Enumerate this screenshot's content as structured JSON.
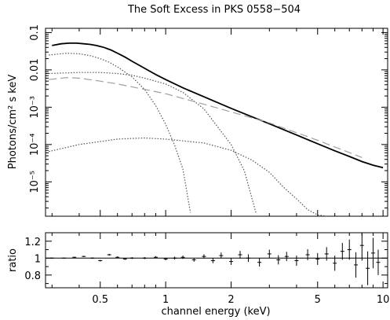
{
  "chart_data": [
    {
      "type": "line",
      "title": "The Soft Excess in PKS 0558−504",
      "xlabel": "",
      "ylabel": "Photons/cm² s keV",
      "xscale": "log",
      "yscale": "log",
      "xlim": [
        0.28,
        10.5
      ],
      "ylim": [
        1.2e-06,
        0.13
      ],
      "x_ticks": [
        0.5,
        1,
        2,
        5,
        10
      ],
      "y_ticks": [
        {
          "v": 0.1,
          "label": "0.1"
        },
        {
          "v": 0.01,
          "label": "0.01"
        },
        {
          "v": 0.001,
          "label": "10⁻³"
        },
        {
          "v": 0.0001,
          "label": "10⁻⁴"
        },
        {
          "v": 1e-05,
          "label": "10⁻⁵"
        }
      ],
      "series": [
        {
          "style": "data",
          "color": "#000000",
          "x": [
            0.3,
            0.33,
            0.36,
            0.39,
            0.42,
            0.45,
            0.48,
            0.52,
            0.56,
            0.6,
            0.65,
            0.7,
            0.8,
            0.9,
            1.0,
            1.2,
            1.5,
            2.0,
            2.5,
            3.0,
            4.0,
            5.0,
            6.0,
            7.0,
            8.0,
            9.0,
            10.0
          ],
          "y": [
            0.045,
            0.05,
            0.052,
            0.052,
            0.05,
            0.048,
            0.045,
            0.04,
            0.034,
            0.028,
            0.022,
            0.017,
            0.011,
            0.0075,
            0.0055,
            0.0033,
            0.0019,
            0.00093,
            0.00055,
            0.00036,
            0.00018,
            0.000105,
            6.8e-05,
            4.8e-05,
            3.5e-05,
            2.8e-05,
            2.4e-05
          ]
        },
        {
          "style": "blackbody-1",
          "color": "#555555",
          "x": [
            0.29,
            0.35,
            0.4,
            0.45,
            0.5,
            0.55,
            0.6,
            0.7,
            0.8,
            0.9,
            1.0,
            1.1,
            1.2,
            1.3
          ],
          "y": [
            0.025,
            0.028,
            0.027,
            0.024,
            0.02,
            0.016,
            0.012,
            0.0065,
            0.003,
            0.0011,
            0.00035,
            9.5e-05,
            2.2e-05,
            1.5e-06
          ]
        },
        {
          "style": "blackbody-2",
          "color": "#555555",
          "x": [
            0.29,
            0.4,
            0.5,
            0.6,
            0.7,
            0.8,
            1.0,
            1.2,
            1.5,
            2.0,
            2.3,
            2.6
          ],
          "y": [
            0.008,
            0.0085,
            0.0085,
            0.008,
            0.0072,
            0.006,
            0.0042,
            0.0025,
            0.0009,
            0.0001,
            2e-05,
            1.5e-06
          ]
        },
        {
          "style": "blackbody-3",
          "color": "#555555",
          "x": [
            0.29,
            0.4,
            0.6,
            0.8,
            1.0,
            1.5,
            2.0,
            2.5,
            3.0,
            3.5,
            4.0,
            4.5,
            5.0,
            5.5
          ],
          "y": [
            6.5e-05,
            0.0001,
            0.00014,
            0.00015,
            0.00014,
            0.00011,
            7e-05,
            3.8e-05,
            1.8e-05,
            7e-06,
            3.5e-06,
            1.8e-06,
            1.3e-06,
            1.2e-06
          ]
        },
        {
          "style": "power-law",
          "color": "#a0a0a0",
          "x": [
            0.29,
            0.35,
            0.4,
            0.5,
            0.6,
            0.8,
            1.0,
            1.5,
            2.0,
            3.0,
            5.0,
            8.0
          ],
          "y": [
            0.0055,
            0.0062,
            0.006,
            0.005,
            0.0042,
            0.003,
            0.0023,
            0.0012,
            0.00075,
            0.00038,
            0.00013,
            4.5e-05
          ]
        }
      ]
    },
    {
      "type": "scatter",
      "title": "",
      "xlabel": "channel energy (keV)",
      "ylabel": "ratio",
      "xscale": "log",
      "xlim": [
        0.28,
        10.5
      ],
      "ylim": [
        0.65,
        1.3
      ],
      "x_ticks": [
        0.5,
        1,
        2,
        5,
        10
      ],
      "x_tick_labels": [
        "0.5",
        "1",
        "2",
        "5",
        "10"
      ],
      "y_ticks": [
        0.8,
        1,
        1.2
      ],
      "y_tick_labels": [
        "0.8",
        "1",
        "1.2"
      ],
      "reference_line": 1.0,
      "x": [
        0.3,
        0.34,
        0.38,
        0.42,
        0.46,
        0.5,
        0.55,
        0.6,
        0.65,
        0.7,
        0.8,
        0.9,
        1.0,
        1.1,
        1.2,
        1.35,
        1.5,
        1.65,
        1.8,
        2.0,
        2.2,
        2.4,
        2.7,
        3.0,
        3.3,
        3.6,
        4.0,
        4.5,
        5.0,
        5.5,
        6.0,
        6.5,
        7.0,
        7.5,
        8.0,
        8.5,
        9.0,
        9.5
      ],
      "y": [
        1.0,
        1.0,
        1.01,
        1.02,
        1.0,
        0.97,
        1.04,
        1.01,
        0.99,
        1.0,
        1.0,
        1.01,
        0.99,
        1.0,
        1.01,
        0.98,
        1.02,
        0.97,
        1.03,
        0.96,
        1.04,
        1.0,
        0.95,
        1.05,
        0.98,
        1.02,
        0.97,
        1.04,
        0.99,
        1.05,
        0.94,
        1.08,
        1.1,
        0.92,
        1.15,
        0.88,
        1.06,
        0.95
      ],
      "err": [
        0.006,
        0.006,
        0.006,
        0.007,
        0.008,
        0.009,
        0.01,
        0.01,
        0.01,
        0.011,
        0.012,
        0.013,
        0.015,
        0.017,
        0.02,
        0.022,
        0.025,
        0.03,
        0.035,
        0.04,
        0.045,
        0.045,
        0.05,
        0.05,
        0.055,
        0.055,
        0.06,
        0.065,
        0.07,
        0.08,
        0.09,
        0.1,
        0.12,
        0.15,
        0.18,
        0.2,
        0.18,
        0.15
      ]
    }
  ]
}
